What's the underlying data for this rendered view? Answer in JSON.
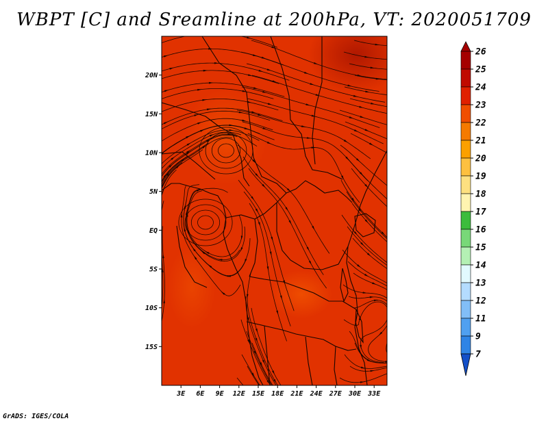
{
  "title": "WBPT [C] and Sreamline at 200hPa, VT: 2020051709",
  "credit": "GrADS: IGES/COLA",
  "map": {
    "lon_range": [
      0,
      35
    ],
    "lat_range": [
      -20,
      25
    ],
    "lat_ticks": [
      {
        "value": 20,
        "label": "20N"
      },
      {
        "value": 15,
        "label": "15N"
      },
      {
        "value": 10,
        "label": "10N"
      },
      {
        "value": 5,
        "label": "5N"
      },
      {
        "value": 0,
        "label": "EQ"
      },
      {
        "value": -5,
        "label": "5S"
      },
      {
        "value": -10,
        "label": "10S"
      },
      {
        "value": -15,
        "label": "15S"
      }
    ],
    "lon_ticks": [
      {
        "value": 3,
        "label": "3E"
      },
      {
        "value": 6,
        "label": "6E"
      },
      {
        "value": 9,
        "label": "9E"
      },
      {
        "value": 12,
        "label": "12E"
      },
      {
        "value": 15,
        "label": "15E"
      },
      {
        "value": 18,
        "label": "18E"
      },
      {
        "value": 21,
        "label": "21E"
      },
      {
        "value": 24,
        "label": "24E"
      },
      {
        "value": 27,
        "label": "27E"
      },
      {
        "value": 30,
        "label": "30E"
      },
      {
        "value": 33,
        "label": "33E"
      }
    ],
    "field_colors": {
      "main": "#e13200",
      "dark": "#c51e00",
      "light": "#f04b00"
    }
  },
  "colorbar": {
    "levels": [
      {
        "label": "26",
        "color": "#a50000"
      },
      {
        "label": "25",
        "color": "#c00a00"
      },
      {
        "label": "24",
        "color": "#e02000"
      },
      {
        "label": "23",
        "color": "#f04e00"
      },
      {
        "label": "22",
        "color": "#f57a00"
      },
      {
        "label": "21",
        "color": "#fba000"
      },
      {
        "label": "20",
        "color": "#fdc040"
      },
      {
        "label": "19",
        "color": "#fde080"
      },
      {
        "label": "18",
        "color": "#fff4b0"
      },
      {
        "label": "17",
        "color": "#3cbc3c"
      },
      {
        "label": "16",
        "color": "#78d878"
      },
      {
        "label": "15",
        "color": "#b4f0b4"
      },
      {
        "label": "14",
        "color": "#e2faff"
      },
      {
        "label": "13",
        "color": "#b4dcff"
      },
      {
        "label": "12",
        "color": "#82bef7"
      },
      {
        "label": "11",
        "color": "#50a0f0"
      },
      {
        "label": "9",
        "color": "#2f84e5"
      },
      {
        "label": "7",
        "color": "#1d64d2"
      }
    ],
    "bottom_color": "#1450c8"
  }
}
